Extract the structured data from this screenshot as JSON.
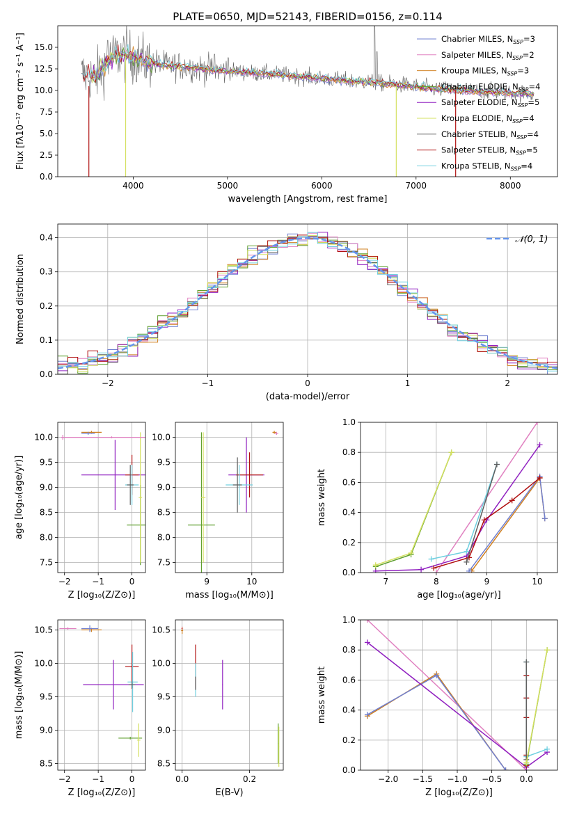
{
  "colors": {
    "chabrier_miles": "#7080d0",
    "salpeter_miles": "#e080c0",
    "kroupa_miles": "#d08020",
    "chabrier_elodie": "#60a030",
    "salpeter_elodie": "#9020c0",
    "kroupa_elodie": "#d4e060",
    "chabrier_stelib": "#606060",
    "salpeter_stelib": "#b01010",
    "kroupa_stelib": "#70d0e0",
    "gaussian": "#6495ed",
    "grid": "#b0b0b0"
  },
  "chart_data": [
    {
      "id": "spectrum",
      "type": "line",
      "title": "PLATE=0650, MJD=52143, FIBERID=0156, z=0.114",
      "xlabel": "wavelength [Angstrom, rest frame]",
      "ylabel": "Flux [fλ10⁻¹⁷ erg cm⁻² s⁻¹ A⁻¹]",
      "xlim": [
        3200,
        8500
      ],
      "ylim": [
        0,
        17.5
      ],
      "xticks": [
        4000,
        5000,
        6000,
        7000,
        8000
      ],
      "yticks": [
        0.0,
        2.5,
        5.0,
        7.5,
        10.0,
        12.5,
        15.0
      ],
      "grid": false,
      "legend_position": "top-right",
      "legend": [
        {
          "key": "chabrier_miles",
          "label": "Chabrier MILES, N",
          "sub": "SSP",
          "tail": "=3"
        },
        {
          "key": "salpeter_miles",
          "label": "Salpeter MILES, N",
          "sub": "SSP",
          "tail": "=2"
        },
        {
          "key": "kroupa_miles",
          "label": "Kroupa MILES, N",
          "sub": "SSP",
          "tail": "=3"
        },
        {
          "key": "chabrier_elodie",
          "label": "Chabrier ELODIE, N",
          "sub": "SSP",
          "tail": "=4"
        },
        {
          "key": "salpeter_elodie",
          "label": "Salpeter ELODIE, N",
          "sub": "SSP",
          "tail": "=5"
        },
        {
          "key": "kroupa_elodie",
          "label": "Kroupa ELODIE, N",
          "sub": "SSP",
          "tail": "=4"
        },
        {
          "key": "chabrier_stelib",
          "label": "Chabrier STELIB, N",
          "sub": "SSP",
          "tail": "=4"
        },
        {
          "key": "salpeter_stelib",
          "label": "Salpeter STELIB, N",
          "sub": "SSP",
          "tail": "=5"
        },
        {
          "key": "kroupa_stelib",
          "label": "Kroupa STELIB, N",
          "sub": "SSP",
          "tail": "=4"
        }
      ],
      "continuum": {
        "x": [
          3400,
          3600,
          3700,
          3800,
          3900,
          4000,
          4100,
          4300,
          4500,
          4700,
          4900,
          5100,
          5300,
          5500,
          5700,
          5900,
          6100,
          6300,
          6500,
          6700,
          6900,
          7100,
          7300,
          7500,
          7700,
          7900,
          8100,
          8250
        ],
        "y": [
          12.0,
          11.5,
          13.0,
          14.0,
          14.2,
          13.8,
          13.5,
          13.0,
          12.8,
          12.6,
          12.3,
          12.2,
          12.0,
          11.9,
          11.7,
          11.5,
          11.3,
          11.1,
          11.0,
          10.8,
          10.6,
          10.3,
          10.1,
          10.0,
          9.9,
          9.8,
          9.7,
          9.6
        ]
      },
      "drops": [
        {
          "key": "salpeter_stelib",
          "x": 3530,
          "y_from": 10.5,
          "y_to": 0
        },
        {
          "key": "kroupa_elodie",
          "x": 3920,
          "y_from": 14.0,
          "y_to": 0
        },
        {
          "key": "kroupa_elodie",
          "x": 6790,
          "y_from": 10.5,
          "y_to": 0
        },
        {
          "key": "salpeter_stelib",
          "x": 7420,
          "y_from": 10.0,
          "y_to": 0
        }
      ],
      "emission_lines": [
        {
          "x": 6563,
          "peak": 17.5
        },
        {
          "x": 6583,
          "peak": 14.5
        },
        {
          "x": 4861,
          "peak": 14.2
        },
        {
          "x": 5007,
          "peak": 13.8
        },
        {
          "x": 3727,
          "peak": 15.8
        }
      ]
    },
    {
      "id": "residuals",
      "type": "step",
      "xlabel": "(data-model)/error",
      "ylabel": "Normed distribution",
      "xlim": [
        -2.5,
        2.5
      ],
      "ylim": [
        0,
        0.44
      ],
      "xticks": [
        -2,
        -1,
        0,
        1,
        2
      ],
      "yticks": [
        0.0,
        0.1,
        0.2,
        0.3,
        0.4
      ],
      "grid": true,
      "legend_position": "top-right",
      "gaussian_label": "𝒩(0, 1)",
      "bin_width": 0.1,
      "bin_start": -2.5
    },
    {
      "id": "age_vs_Z",
      "type": "errorbar",
      "xlabel": "Z [log₁₀(Z/Z⊙)]",
      "ylabel": "age  [log₁₀(age/yr)]",
      "xlim": [
        -2.2,
        0.4
      ],
      "ylim": [
        7.3,
        10.3
      ],
      "xticks": [
        -2,
        -1,
        0
      ],
      "yticks": [
        7.5,
        8.0,
        8.5,
        9.0,
        9.5,
        10.0
      ],
      "grid": true,
      "points": [
        {
          "key": "salpeter_miles",
          "x": -2.05,
          "y": 10.0,
          "xerr": 0.05,
          "yerr": 0.05
        },
        {
          "key": "kroupa_miles",
          "x": -1.2,
          "y": 10.1,
          "xerr": 0.3,
          "yerr": 0.03
        },
        {
          "key": "chabrier_miles",
          "x": -1.3,
          "y": 10.08,
          "xerr": 0.2,
          "yerr": 0.03
        },
        {
          "key": "salpeter_elodie",
          "x": -0.5,
          "y": 9.25,
          "xerr": 1.0,
          "yerr": 0.7
        },
        {
          "key": "salpeter_stelib",
          "x": 0.0,
          "y": 9.25,
          "xerr": 0.2,
          "yerr": 0.4
        },
        {
          "key": "kroupa_stelib",
          "x": 0.0,
          "y": 9.05,
          "xerr": 0.2,
          "yerr": 0.4
        },
        {
          "key": "chabrier_stelib",
          "x": -0.05,
          "y": 9.05,
          "xerr": 0.1,
          "yerr": 0.4
        },
        {
          "key": "chabrier_elodie",
          "x": 0.25,
          "y": 8.25,
          "xerr": 0.4,
          "yerr": 0.8
        },
        {
          "key": "kroupa_elodie",
          "x": 0.25,
          "y": 8.8,
          "xerr": 0.05,
          "yerr": 1.3
        },
        {
          "key": "salpeter_miles",
          "x": -0.6,
          "y": 10.0,
          "xerr": 1.5,
          "yerr": 0.02
        }
      ]
    },
    {
      "id": "age_vs_mass",
      "type": "errorbar",
      "xlabel": "mass [log₁₀(M/M⊙)]",
      "ylabel": "",
      "xlim": [
        8.3,
        10.7
      ],
      "ylim": [
        7.3,
        10.3
      ],
      "xticks": [
        9,
        10
      ],
      "yticks": [
        7.5,
        8.0,
        8.5,
        9.0,
        9.5,
        10.0
      ],
      "grid": true,
      "points": [
        {
          "key": "salpeter_miles",
          "x": 10.55,
          "y": 10.08,
          "xerr": 0.04,
          "yerr": 0.03
        },
        {
          "key": "kroupa_miles",
          "x": 10.5,
          "y": 10.1,
          "xerr": 0.04,
          "yerr": 0.03
        },
        {
          "key": "salpeter_elodie",
          "x": 9.88,
          "y": 9.25,
          "xerr": 0.4,
          "yerr": 0.75
        },
        {
          "key": "salpeter_stelib",
          "x": 9.95,
          "y": 9.25,
          "xerr": 0.3,
          "yerr": 0.45
        },
        {
          "key": "kroupa_stelib",
          "x": 9.72,
          "y": 9.05,
          "xerr": 0.3,
          "yerr": 0.4
        },
        {
          "key": "chabrier_stelib",
          "x": 9.68,
          "y": 9.05,
          "xerr": 0.1,
          "yerr": 0.55
        },
        {
          "key": "chabrier_elodie",
          "x": 8.88,
          "y": 8.25,
          "xerr": 0.3,
          "yerr": 1.85
        },
        {
          "key": "kroupa_elodie",
          "x": 8.92,
          "y": 8.8,
          "xerr": 0.05,
          "yerr": 1.3
        }
      ]
    },
    {
      "id": "massweight_vs_age",
      "type": "line",
      "xlabel": "age  [log₁₀(age/yr)]",
      "ylabel": "mass weight",
      "xlim": [
        6.5,
        10.4
      ],
      "ylim": [
        0,
        1
      ],
      "xticks": [
        7,
        8,
        9,
        10
      ],
      "yticks": [
        0.0,
        0.2,
        0.4,
        0.6,
        0.8,
        1.0
      ],
      "grid": true,
      "series": [
        {
          "key": "salpeter_miles",
          "x": [
            8.0,
            10.0
          ],
          "y": [
            0.0,
            1.0
          ]
        },
        {
          "key": "kroupa_miles",
          "x": [
            8.7,
            10.05,
            10.15
          ],
          "y": [
            0.01,
            0.63,
            0.36
          ]
        },
        {
          "key": "chabrier_miles",
          "x": [
            8.65,
            10.05,
            10.15
          ],
          "y": [
            0.01,
            0.64,
            0.36
          ]
        },
        {
          "key": "salpeter_elodie",
          "x": [
            6.8,
            7.7,
            8.6,
            9.0,
            10.05
          ],
          "y": [
            0.01,
            0.02,
            0.11,
            0.35,
            0.85
          ]
        },
        {
          "key": "salpeter_stelib",
          "x": [
            7.95,
            8.65,
            8.95,
            9.5,
            10.05
          ],
          "y": [
            0.03,
            0.1,
            0.35,
            0.48,
            0.63
          ]
        },
        {
          "key": "kroupa_stelib",
          "x": [
            7.9,
            8.6,
            9.2
          ],
          "y": [
            0.09,
            0.14,
            0.72
          ]
        },
        {
          "key": "chabrier_stelib",
          "x": [
            8.6,
            9.2
          ],
          "y": [
            0.07,
            0.72
          ]
        },
        {
          "key": "chabrier_elodie",
          "x": [
            6.8,
            7.5,
            8.3
          ],
          "y": [
            0.04,
            0.12,
            0.8
          ]
        },
        {
          "key": "kroupa_elodie",
          "x": [
            6.8,
            7.5,
            8.3
          ],
          "y": [
            0.05,
            0.13,
            0.8
          ]
        }
      ]
    },
    {
      "id": "mass_vs_Z",
      "type": "errorbar",
      "xlabel": "Z [log₁₀(Z/Z⊙)]",
      "ylabel": "mass [log₁₀(M/M⊙)]",
      "xlim": [
        -2.2,
        0.4
      ],
      "ylim": [
        8.4,
        10.65
      ],
      "xticks": [
        -2,
        -1,
        0
      ],
      "yticks": [
        8.5,
        9.0,
        9.5,
        10.0,
        10.5
      ],
      "grid": true,
      "points": [
        {
          "key": "salpeter_miles",
          "x": -1.9,
          "y": 10.52,
          "xerr": 0.25,
          "yerr": 0.02
        },
        {
          "key": "kroupa_miles",
          "x": -1.2,
          "y": 10.5,
          "xerr": 0.3,
          "yerr": 0.03
        },
        {
          "key": "chabrier_miles",
          "x": -1.25,
          "y": 10.52,
          "xerr": 0.25,
          "yerr": 0.05
        },
        {
          "key": "salpeter_elodie",
          "x": -0.55,
          "y": 9.68,
          "xerr": 0.9,
          "yerr": 0.37
        },
        {
          "key": "salpeter_stelib",
          "x": 0.0,
          "y": 9.95,
          "xerr": 0.2,
          "yerr": 0.33
        },
        {
          "key": "kroupa_stelib",
          "x": 0.02,
          "y": 9.72,
          "xerr": 0.15,
          "yerr": 0.45
        },
        {
          "key": "chabrier_stelib",
          "x": 0.0,
          "y": 9.68,
          "xerr": 0.1,
          "yerr": 0.05
        },
        {
          "key": "chabrier_elodie",
          "x": -0.05,
          "y": 8.88,
          "xerr": 0.35,
          "yerr": 0.02
        },
        {
          "key": "kroupa_elodie",
          "x": 0.2,
          "y": 8.85,
          "xerr": 0.05,
          "yerr": 0.25
        }
      ]
    },
    {
      "id": "mass_vs_ebv",
      "type": "errorbar",
      "xlabel": "E(B-V)",
      "ylabel": "",
      "xlim": [
        -0.02,
        0.3
      ],
      "ylim": [
        8.4,
        10.65
      ],
      "xticks": [
        0.0,
        0.2
      ],
      "yticks": [
        8.5,
        9.0,
        9.5,
        10.0,
        10.5
      ],
      "grid": true,
      "points": [
        {
          "key": "salpeter_miles",
          "x": 0.0,
          "y": 10.52,
          "xerr": 0.003,
          "yerr": 0.03
        },
        {
          "key": "kroupa_miles",
          "x": 0.0,
          "y": 10.49,
          "xerr": 0.003,
          "yerr": 0.05
        },
        {
          "key": "salpeter_stelib",
          "x": 0.04,
          "y": 9.95,
          "xerr": 0.001,
          "yerr": 0.33
        },
        {
          "key": "kroupa_stelib",
          "x": 0.04,
          "y": 9.75,
          "xerr": 0.001,
          "yerr": 0.25
        },
        {
          "key": "chabrier_stelib",
          "x": 0.04,
          "y": 9.7,
          "xerr": 0.001,
          "yerr": 0.1
        },
        {
          "key": "salpeter_elodie",
          "x": 0.12,
          "y": 9.68,
          "xerr": 0.001,
          "yerr": 0.37
        },
        {
          "key": "chabrier_elodie",
          "x": 0.285,
          "y": 8.8,
          "xerr": 0.001,
          "yerr": 0.3
        },
        {
          "key": "kroupa_elodie",
          "x": 0.287,
          "y": 8.75,
          "xerr": 0.001,
          "yerr": 0.3
        }
      ]
    },
    {
      "id": "massweight_vs_Z",
      "type": "line",
      "xlabel": "Z [log₁₀(Z/Z⊙)]",
      "ylabel": "mass weight",
      "xlim": [
        -2.4,
        0.45
      ],
      "ylim": [
        0,
        1
      ],
      "xticks": [
        -2.0,
        -1.5,
        -1.0,
        -0.5,
        0.0
      ],
      "yticks": [
        0.0,
        0.2,
        0.4,
        0.6,
        0.8,
        1.0
      ],
      "grid": true,
      "series": [
        {
          "key": "salpeter_miles",
          "x": [
            -2.3,
            0.0
          ],
          "y": [
            1.0,
            0.0
          ]
        },
        {
          "key": "kroupa_miles",
          "x": [
            -2.3,
            -1.3,
            -0.3
          ],
          "y": [
            0.36,
            0.64,
            0.0
          ]
        },
        {
          "key": "chabrier_miles",
          "x": [
            -2.3,
            -1.3,
            -0.3
          ],
          "y": [
            0.37,
            0.63,
            0.0
          ]
        },
        {
          "key": "salpeter_elodie",
          "x": [
            -2.3,
            0.0,
            0.3
          ],
          "y": [
            0.85,
            0.02,
            0.12
          ]
        },
        {
          "key": "salpeter_stelib",
          "x": [
            0.0,
            0.0,
            0.0,
            0.0,
            0.0
          ],
          "y": [
            0.03,
            0.1,
            0.35,
            0.48,
            0.63
          ]
        },
        {
          "key": "kroupa_stelib",
          "x": [
            0.0,
            0.0,
            0.3
          ],
          "y": [
            0.72,
            0.09,
            0.14
          ]
        },
        {
          "key": "chabrier_stelib",
          "x": [
            0.0,
            0.0
          ],
          "y": [
            0.07,
            0.72
          ]
        },
        {
          "key": "chabrier_elodie",
          "x": [
            0.0,
            0.3
          ],
          "y": [
            0.04,
            0.8
          ]
        },
        {
          "key": "kroupa_elodie",
          "x": [
            0.0,
            0.3
          ],
          "y": [
            0.05,
            0.8
          ]
        }
      ]
    }
  ]
}
